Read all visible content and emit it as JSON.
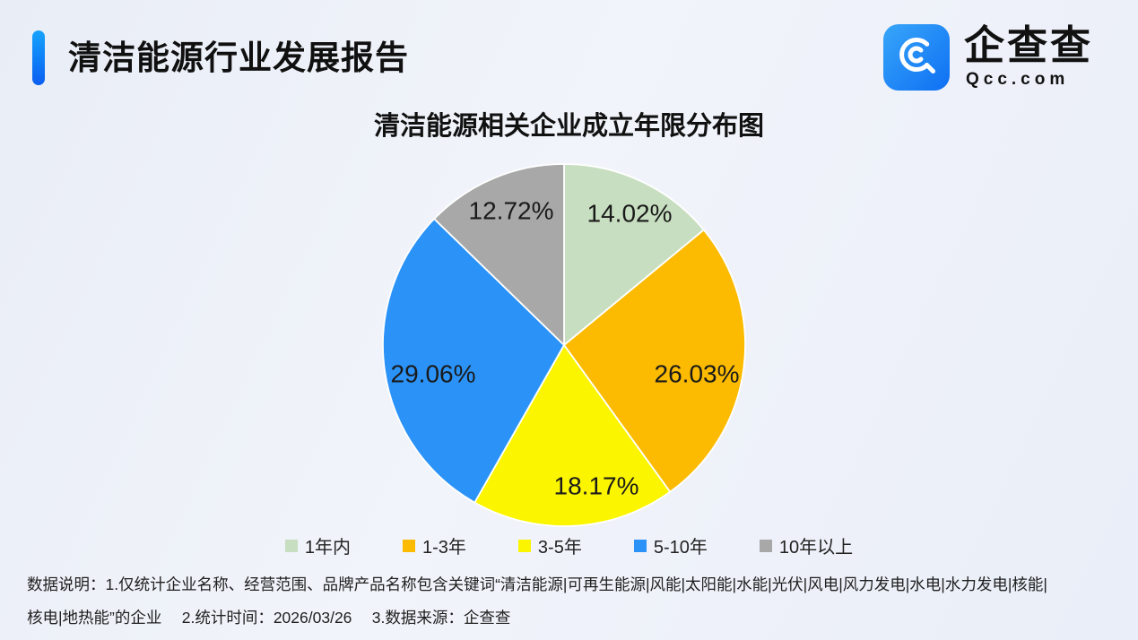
{
  "header": {
    "title": "清洁能源行业发展报告",
    "accent_color": "#0d6cf5",
    "logo": {
      "brand": "企查查",
      "domain": "Qcc.com",
      "icon": "qcc-magnifier-icon",
      "icon_color": "#1b86f6"
    }
  },
  "chart_data": {
    "type": "pie",
    "title": "清洁能源相关企业成立年限分布图",
    "categories": [
      "1年内",
      "1-3年",
      "3-5年",
      "5-10年",
      "10年以上"
    ],
    "values": [
      14.02,
      26.03,
      18.17,
      29.06,
      12.72
    ],
    "labels": [
      "14.02%",
      "26.03%",
      "18.17%",
      "29.06%",
      "12.72%"
    ],
    "colors": [
      "#c8dec0",
      "#fcba00",
      "#fbf500",
      "#2b93f8",
      "#a8a8a9"
    ],
    "unit": "%",
    "start_angle": 0,
    "direction": "clockwise",
    "legend_position": "bottom",
    "label_positions": [
      [
        288,
        68
      ],
      [
        363,
        247
      ],
      [
        251,
        372
      ],
      [
        69,
        247
      ],
      [
        156,
        65
      ]
    ]
  },
  "notes": {
    "line1": "数据说明：1.仅统计企业名称、经营范围、品牌产品名称包含关键词“清洁能源|可再生能源|风能|太阳能|水能|光伏|风电|风力发电|水电|水力发电|核能|",
    "line2": "核电|地热能”的企业　 2.统计时间：2026/03/26　 3.数据来源：企查查"
  }
}
